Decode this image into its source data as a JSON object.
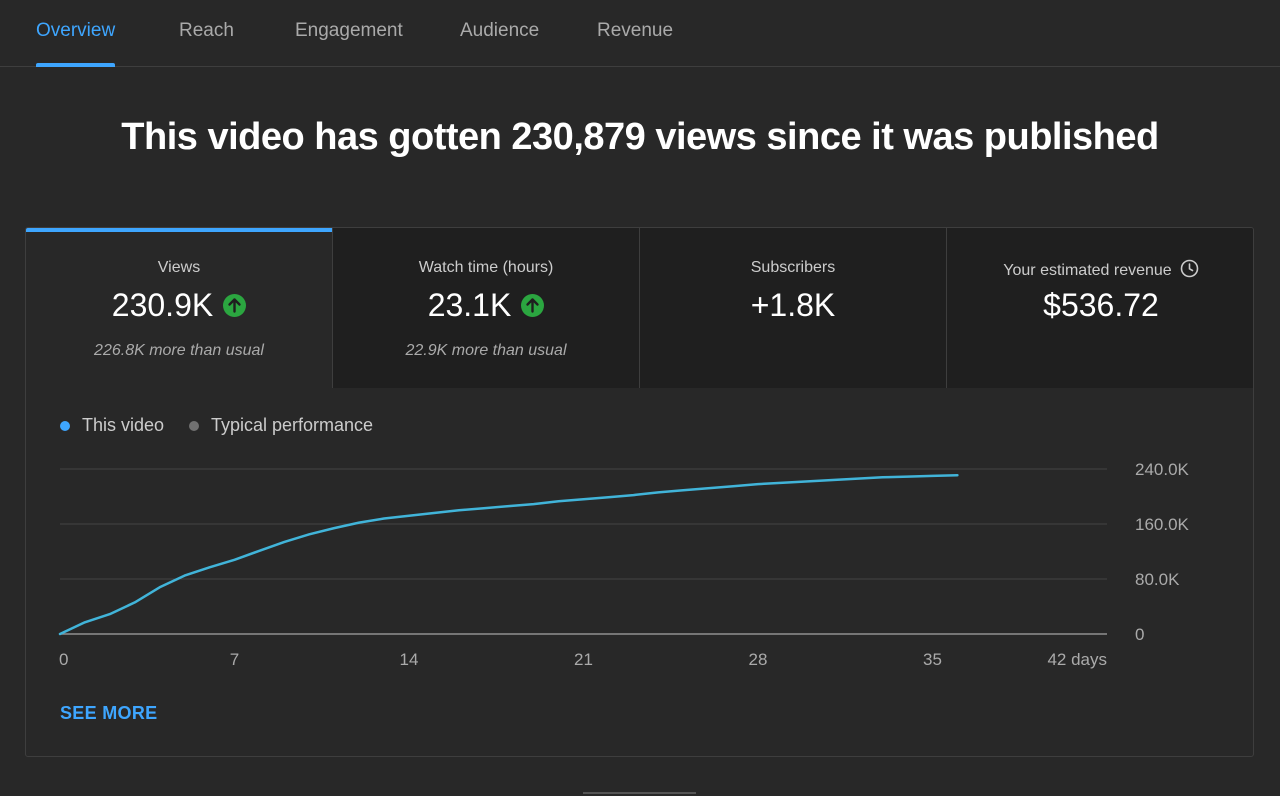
{
  "tabs": [
    {
      "label": "Overview",
      "active": true
    },
    {
      "label": "Reach",
      "active": false
    },
    {
      "label": "Engagement",
      "active": false
    },
    {
      "label": "Audience",
      "active": false
    },
    {
      "label": "Revenue",
      "active": false
    }
  ],
  "headline": "This video has gotten 230,879 views since it was published",
  "metrics": [
    {
      "label": "Views",
      "value": "230.9K",
      "trend": "up",
      "sub": "226.8K more than usual",
      "selected": true
    },
    {
      "label": "Watch time (hours)",
      "value": "23.1K",
      "trend": "up",
      "sub": "22.9K more than usual",
      "selected": false
    },
    {
      "label": "Subscribers",
      "value": "+1.8K",
      "trend": "",
      "sub": "",
      "selected": false
    },
    {
      "label": "Your estimated revenue",
      "value": "$536.72",
      "trend": "",
      "sub": "",
      "selected": false,
      "icon": "clock-icon"
    }
  ],
  "legend": [
    {
      "label": "This video",
      "color": "#3ea6ff"
    },
    {
      "label": "Typical performance",
      "color": "#717171"
    }
  ],
  "see_more": "SEE MORE",
  "colors": {
    "accent": "#3ea6ff",
    "line": "#41b4d9",
    "up": "#2ba640"
  },
  "chart_data": {
    "type": "line",
    "xlabel": "",
    "ylabel": "",
    "xlim": [
      0,
      42
    ],
    "ylim": [
      0,
      240000
    ],
    "x_ticks": [
      0,
      7,
      14,
      21,
      28,
      35,
      42
    ],
    "x_tick_labels": [
      "0",
      "7",
      "14",
      "21",
      "28",
      "35",
      "42 days"
    ],
    "y_ticks": [
      0,
      80000,
      160000,
      240000
    ],
    "y_tick_labels": [
      "0",
      "80.0K",
      "160.0K",
      "240.0K"
    ],
    "grid": true,
    "series": [
      {
        "name": "This video",
        "x": [
          0,
          1,
          2,
          3,
          4,
          5,
          6,
          7,
          8,
          9,
          10,
          11,
          12,
          13,
          14,
          15,
          16,
          17,
          18,
          19,
          20,
          21,
          22,
          23,
          24,
          25,
          26,
          27,
          28,
          29,
          30,
          31,
          32,
          33,
          34,
          35,
          36
        ],
        "y": [
          0,
          17000,
          29000,
          46000,
          68000,
          85000,
          97000,
          108000,
          121000,
          134000,
          145000,
          154000,
          162000,
          168000,
          172000,
          176000,
          180000,
          183000,
          186000,
          189000,
          193000,
          196000,
          199000,
          202000,
          206000,
          209000,
          212000,
          215000,
          218000,
          220000,
          222000,
          224000,
          226000,
          228000,
          229000,
          230000,
          231000
        ]
      }
    ]
  }
}
